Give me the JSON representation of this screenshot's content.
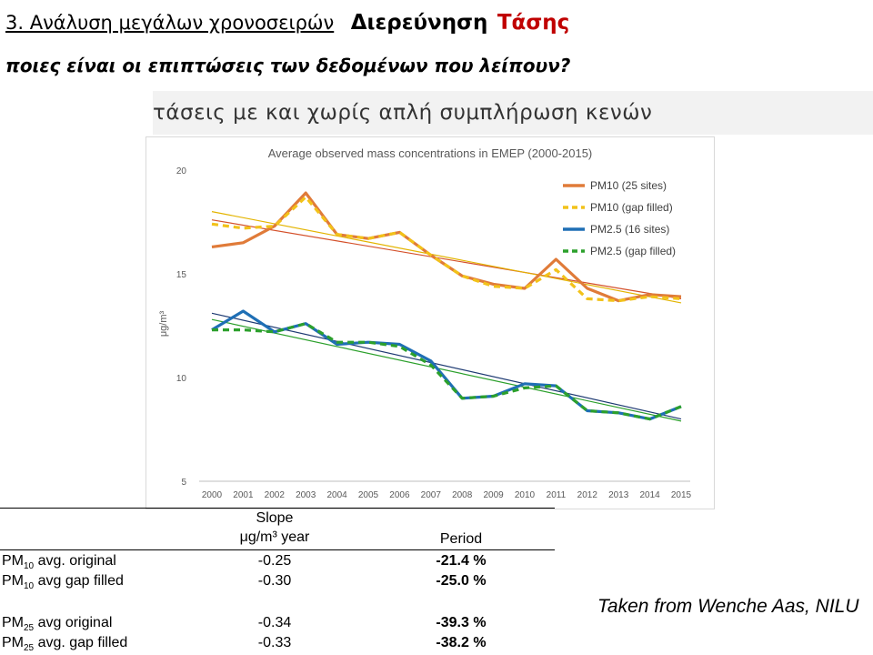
{
  "header": {
    "title_part1": "3. Ανάλυση μεγάλων χρονοσειρών",
    "title_part2": "Διερεύνηση",
    "title_part3": "Τάσης",
    "question": "ποιες είναι οι επιπτώσεις των δεδομένων που λείπουν?"
  },
  "caption": "τάσεις με και χωρίς απλή συμπλήρωση κενών",
  "colors": {
    "pm10": "#e07b39",
    "pm10_gap": "#f2c21a",
    "pm25": "#1f6fb5",
    "pm25_gap": "#2ca02c",
    "trend_pm10": "#d4502a",
    "trend_pm10_gap": "#e3b400",
    "trend_pm25": "#1f3b73",
    "trend_pm25_gap": "#2ca02c"
  },
  "chart_data": {
    "type": "line",
    "title": "Average observed mass concentrations in EMEP (2000-2015)",
    "xlabel": "",
    "ylabel": "μg/m³",
    "ylim": [
      5,
      20
    ],
    "yticks": [
      5,
      10,
      15,
      20
    ],
    "categories": [
      "2000",
      "2001",
      "2002",
      "2003",
      "2004",
      "2005",
      "2006",
      "2007",
      "2008",
      "2009",
      "2010",
      "2011",
      "2012",
      "2013",
      "2014",
      "2015"
    ],
    "legend_position": "top-right",
    "grid": false,
    "series": [
      {
        "name": "PM10 (25 sites)",
        "style": "solid",
        "values": [
          16.3,
          16.5,
          17.3,
          18.9,
          16.9,
          16.7,
          17.0,
          15.9,
          14.9,
          14.5,
          14.3,
          15.7,
          14.3,
          13.7,
          14.0,
          13.9
        ]
      },
      {
        "name": "PM10 (gap filled)",
        "style": "dashed",
        "values": [
          17.4,
          17.2,
          17.3,
          18.7,
          16.9,
          16.7,
          17.0,
          15.9,
          14.9,
          14.4,
          14.3,
          15.2,
          13.8,
          13.7,
          13.9,
          13.8
        ]
      },
      {
        "name": "PM2.5 (16 sites)",
        "style": "solid",
        "values": [
          12.3,
          13.2,
          12.2,
          12.6,
          11.6,
          11.7,
          11.6,
          10.8,
          9.0,
          9.1,
          9.7,
          9.6,
          8.4,
          8.3,
          8.0,
          8.6
        ]
      },
      {
        "name": "PM2.5 (gap filled)",
        "style": "dashed",
        "values": [
          12.3,
          12.3,
          12.2,
          12.6,
          11.7,
          11.7,
          11.5,
          10.6,
          9.0,
          9.1,
          9.5,
          9.6,
          8.4,
          8.3,
          8.0,
          8.6
        ]
      }
    ],
    "trendlines": [
      {
        "series": "PM10 (25 sites)",
        "start": 17.6,
        "end": 13.8
      },
      {
        "series": "PM10 (gap filled)",
        "start": 18.0,
        "end": 13.6
      },
      {
        "series": "PM2.5 (16 sites)",
        "start": 13.1,
        "end": 8.0
      },
      {
        "series": "PM2.5 (gap filled)",
        "start": 12.8,
        "end": 7.9
      }
    ]
  },
  "table": {
    "header_slope_line1": "Slope",
    "header_slope_line2": "μg/m³ year",
    "header_period": "Period",
    "rows": [
      {
        "pm_base": "PM",
        "pm_sub": "10",
        "label_rest": " avg. original",
        "slope": "-0.25",
        "period": "-21.4 %"
      },
      {
        "pm_base": "PM",
        "pm_sub": "10",
        "label_rest": " avg gap filled",
        "slope": "-0.30",
        "period": "-25.0 %"
      },
      {
        "pm_base": "PM",
        "pm_sub": "25",
        "label_rest": " avg original",
        "slope": "-0.34",
        "period": "-39.3 %"
      },
      {
        "pm_base": "PM",
        "pm_sub": "25",
        "label_rest": " avg. gap filled",
        "slope": "-0.33",
        "period": "-38.2 %"
      }
    ]
  },
  "credit": "Taken from Wenche Aas, NILU"
}
